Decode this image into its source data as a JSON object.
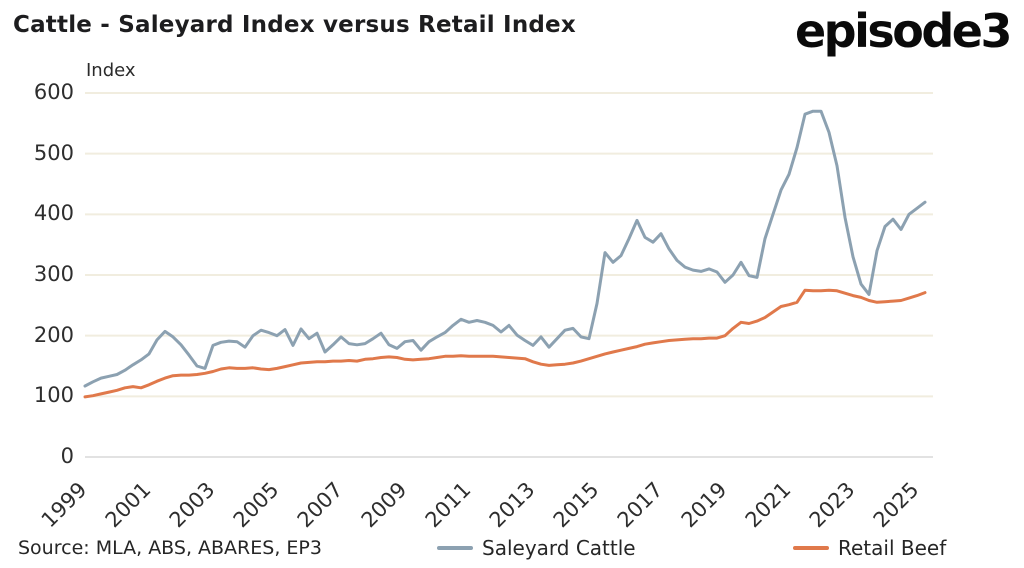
{
  "header": {
    "title": "Cattle - Saleyard Index versus Retail Index",
    "logo_text": "episode3"
  },
  "chart": {
    "y_axis_title": "Index",
    "colors": {
      "grid": "#F1EDDF",
      "zero_grid": "#D8D8D8",
      "saleyard": "#8CA1B1",
      "retail": "#E0794B"
    }
  },
  "legend": {
    "items": [
      {
        "label": "Saleyard Cattle",
        "color": "#8CA1B1"
      },
      {
        "label": "Retail Beef",
        "color": "#E0794B"
      }
    ]
  },
  "footer": {
    "source": "Source: MLA, ABS, ABARES, EP3"
  },
  "chart_data": {
    "type": "line",
    "title": "Cattle - Saleyard Index versus Retail Index",
    "ylabel": "Index",
    "xlabel": "",
    "ylim": [
      0,
      600
    ],
    "y_ticks": [
      0,
      100,
      200,
      300,
      400,
      500,
      600
    ],
    "x_tick_labels": [
      "1999",
      "2001",
      "2003",
      "2005",
      "2007",
      "2009",
      "2011",
      "2013",
      "2015",
      "2017",
      "2019",
      "2021",
      "2023",
      "2025"
    ],
    "x_tick_years": [
      1999,
      2001,
      2003,
      2005,
      2007,
      2009,
      2011,
      2013,
      2015,
      2017,
      2019,
      2021,
      2023,
      2025
    ],
    "x_start": 1999,
    "x_step_years": 0.25,
    "grid": "horizontal",
    "legend_position": "bottom",
    "series": [
      {
        "name": "Saleyard Cattle",
        "color": "#8CA1B1",
        "values": [
          117,
          124,
          130,
          133,
          136,
          143,
          152,
          160,
          170,
          193,
          207,
          198,
          185,
          168,
          150,
          146,
          184,
          189,
          191,
          190,
          181,
          200,
          209,
          205,
          200,
          210,
          184,
          211,
          195,
          204,
          173,
          185,
          198,
          187,
          185,
          187,
          195,
          204,
          185,
          179,
          190,
          192,
          176,
          190,
          198,
          205,
          217,
          227,
          222,
          225,
          222,
          217,
          206,
          217,
          201,
          192,
          184,
          198,
          181,
          195,
          209,
          212,
          198,
          195,
          253,
          337,
          321,
          332,
          360,
          390,
          362,
          354,
          368,
          343,
          324,
          313,
          308,
          306,
          310,
          305,
          288,
          300,
          321,
          299,
          296,
          360,
          400,
          440,
          466,
          510,
          565,
          570,
          570,
          535,
          480,
          395,
          330,
          285,
          268,
          340,
          380,
          392,
          375,
          400,
          410,
          420
        ]
      },
      {
        "name": "Retail Beef",
        "color": "#E0794B",
        "values": [
          99,
          101,
          104,
          107,
          110,
          114,
          116,
          114,
          119,
          125,
          130,
          134,
          135,
          135,
          136,
          138,
          141,
          145,
          147,
          146,
          146,
          147,
          145,
          144,
          146,
          149,
          152,
          155,
          156,
          157,
          157,
          158,
          158,
          159,
          158,
          161,
          162,
          164,
          165,
          164,
          161,
          160,
          161,
          162,
          164,
          166,
          166,
          167,
          166,
          166,
          166,
          166,
          165,
          164,
          163,
          162,
          157,
          153,
          151,
          152,
          153,
          155,
          158,
          162,
          166,
          170,
          173,
          176,
          179,
          182,
          186,
          188,
          190,
          192,
          193,
          194,
          195,
          195,
          196,
          196,
          200,
          212,
          222,
          220,
          224,
          230,
          239,
          248,
          251,
          255,
          275,
          274,
          274,
          275,
          274,
          270,
          266,
          263,
          258,
          255,
          256,
          257,
          258,
          262,
          266,
          271
        ]
      }
    ]
  }
}
